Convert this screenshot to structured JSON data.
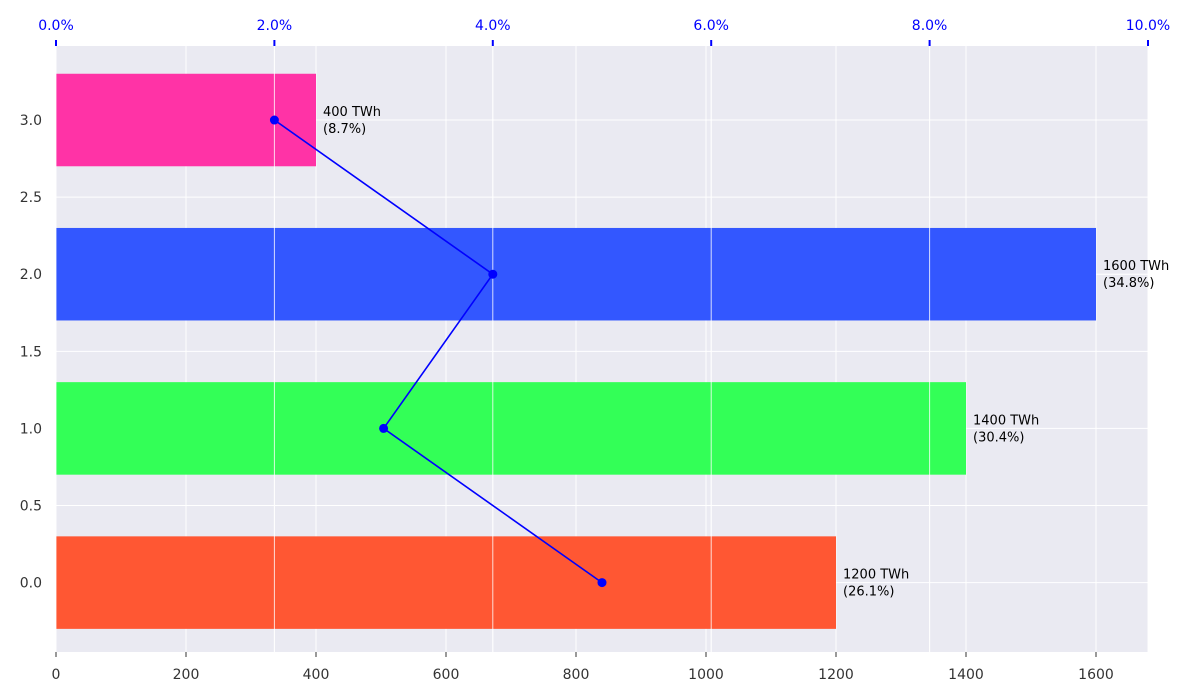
{
  "chart_data": {
    "type": "bar",
    "orientation": "horizontal",
    "y_positions": [
      0,
      1,
      2,
      3
    ],
    "bars": [
      {
        "y": 0,
        "value": 1200,
        "label_value": "1200 TWh",
        "label_pct": "(26.1%)",
        "color": "#ff5733"
      },
      {
        "y": 1,
        "value": 1400,
        "label_value": "1400 TWh",
        "label_pct": "(30.4%)",
        "color": "#33ff57"
      },
      {
        "y": 2,
        "value": 1600,
        "label_value": "1600 TWh",
        "label_pct": "(34.8%)",
        "color": "#3357ff"
      },
      {
        "y": 3,
        "value": 400,
        "label_value": "400 TWh",
        "label_pct": "(8.7%)",
        "color": "#ff33a6"
      }
    ],
    "line": {
      "color": "#0000ff",
      "points": [
        {
          "y": 0,
          "pct": 5.0
        },
        {
          "y": 1,
          "pct": 3.0
        },
        {
          "y": 2,
          "pct": 4.0
        },
        {
          "y": 3,
          "pct": 2.0
        }
      ]
    },
    "x_bottom": {
      "min": 0,
      "max": 1680,
      "ticks": [
        0,
        200,
        400,
        600,
        800,
        1000,
        1200,
        1400,
        1600
      ],
      "tick_labels": [
        "0",
        "200",
        "400",
        "600",
        "800",
        "1000",
        "1200",
        "1400",
        "1600"
      ]
    },
    "x_top": {
      "min": 0,
      "max": 10,
      "ticks": [
        0,
        2,
        4,
        6,
        8,
        10
      ],
      "tick_labels": [
        "0.0%",
        "2.0%",
        "4.0%",
        "6.0%",
        "8.0%",
        "10.0%"
      ],
      "color": "#0000ff"
    },
    "y_axis": {
      "min": -0.45,
      "max": 3.48,
      "ticks": [
        0,
        0.5,
        1,
        1.5,
        2,
        2.5,
        3
      ],
      "tick_labels": [
        "0.0",
        "0.5",
        "1.0",
        "1.5",
        "2.0",
        "2.5",
        "3.0"
      ]
    },
    "bar_height": 0.6,
    "background": "#eaeaf2",
    "grid": true
  }
}
